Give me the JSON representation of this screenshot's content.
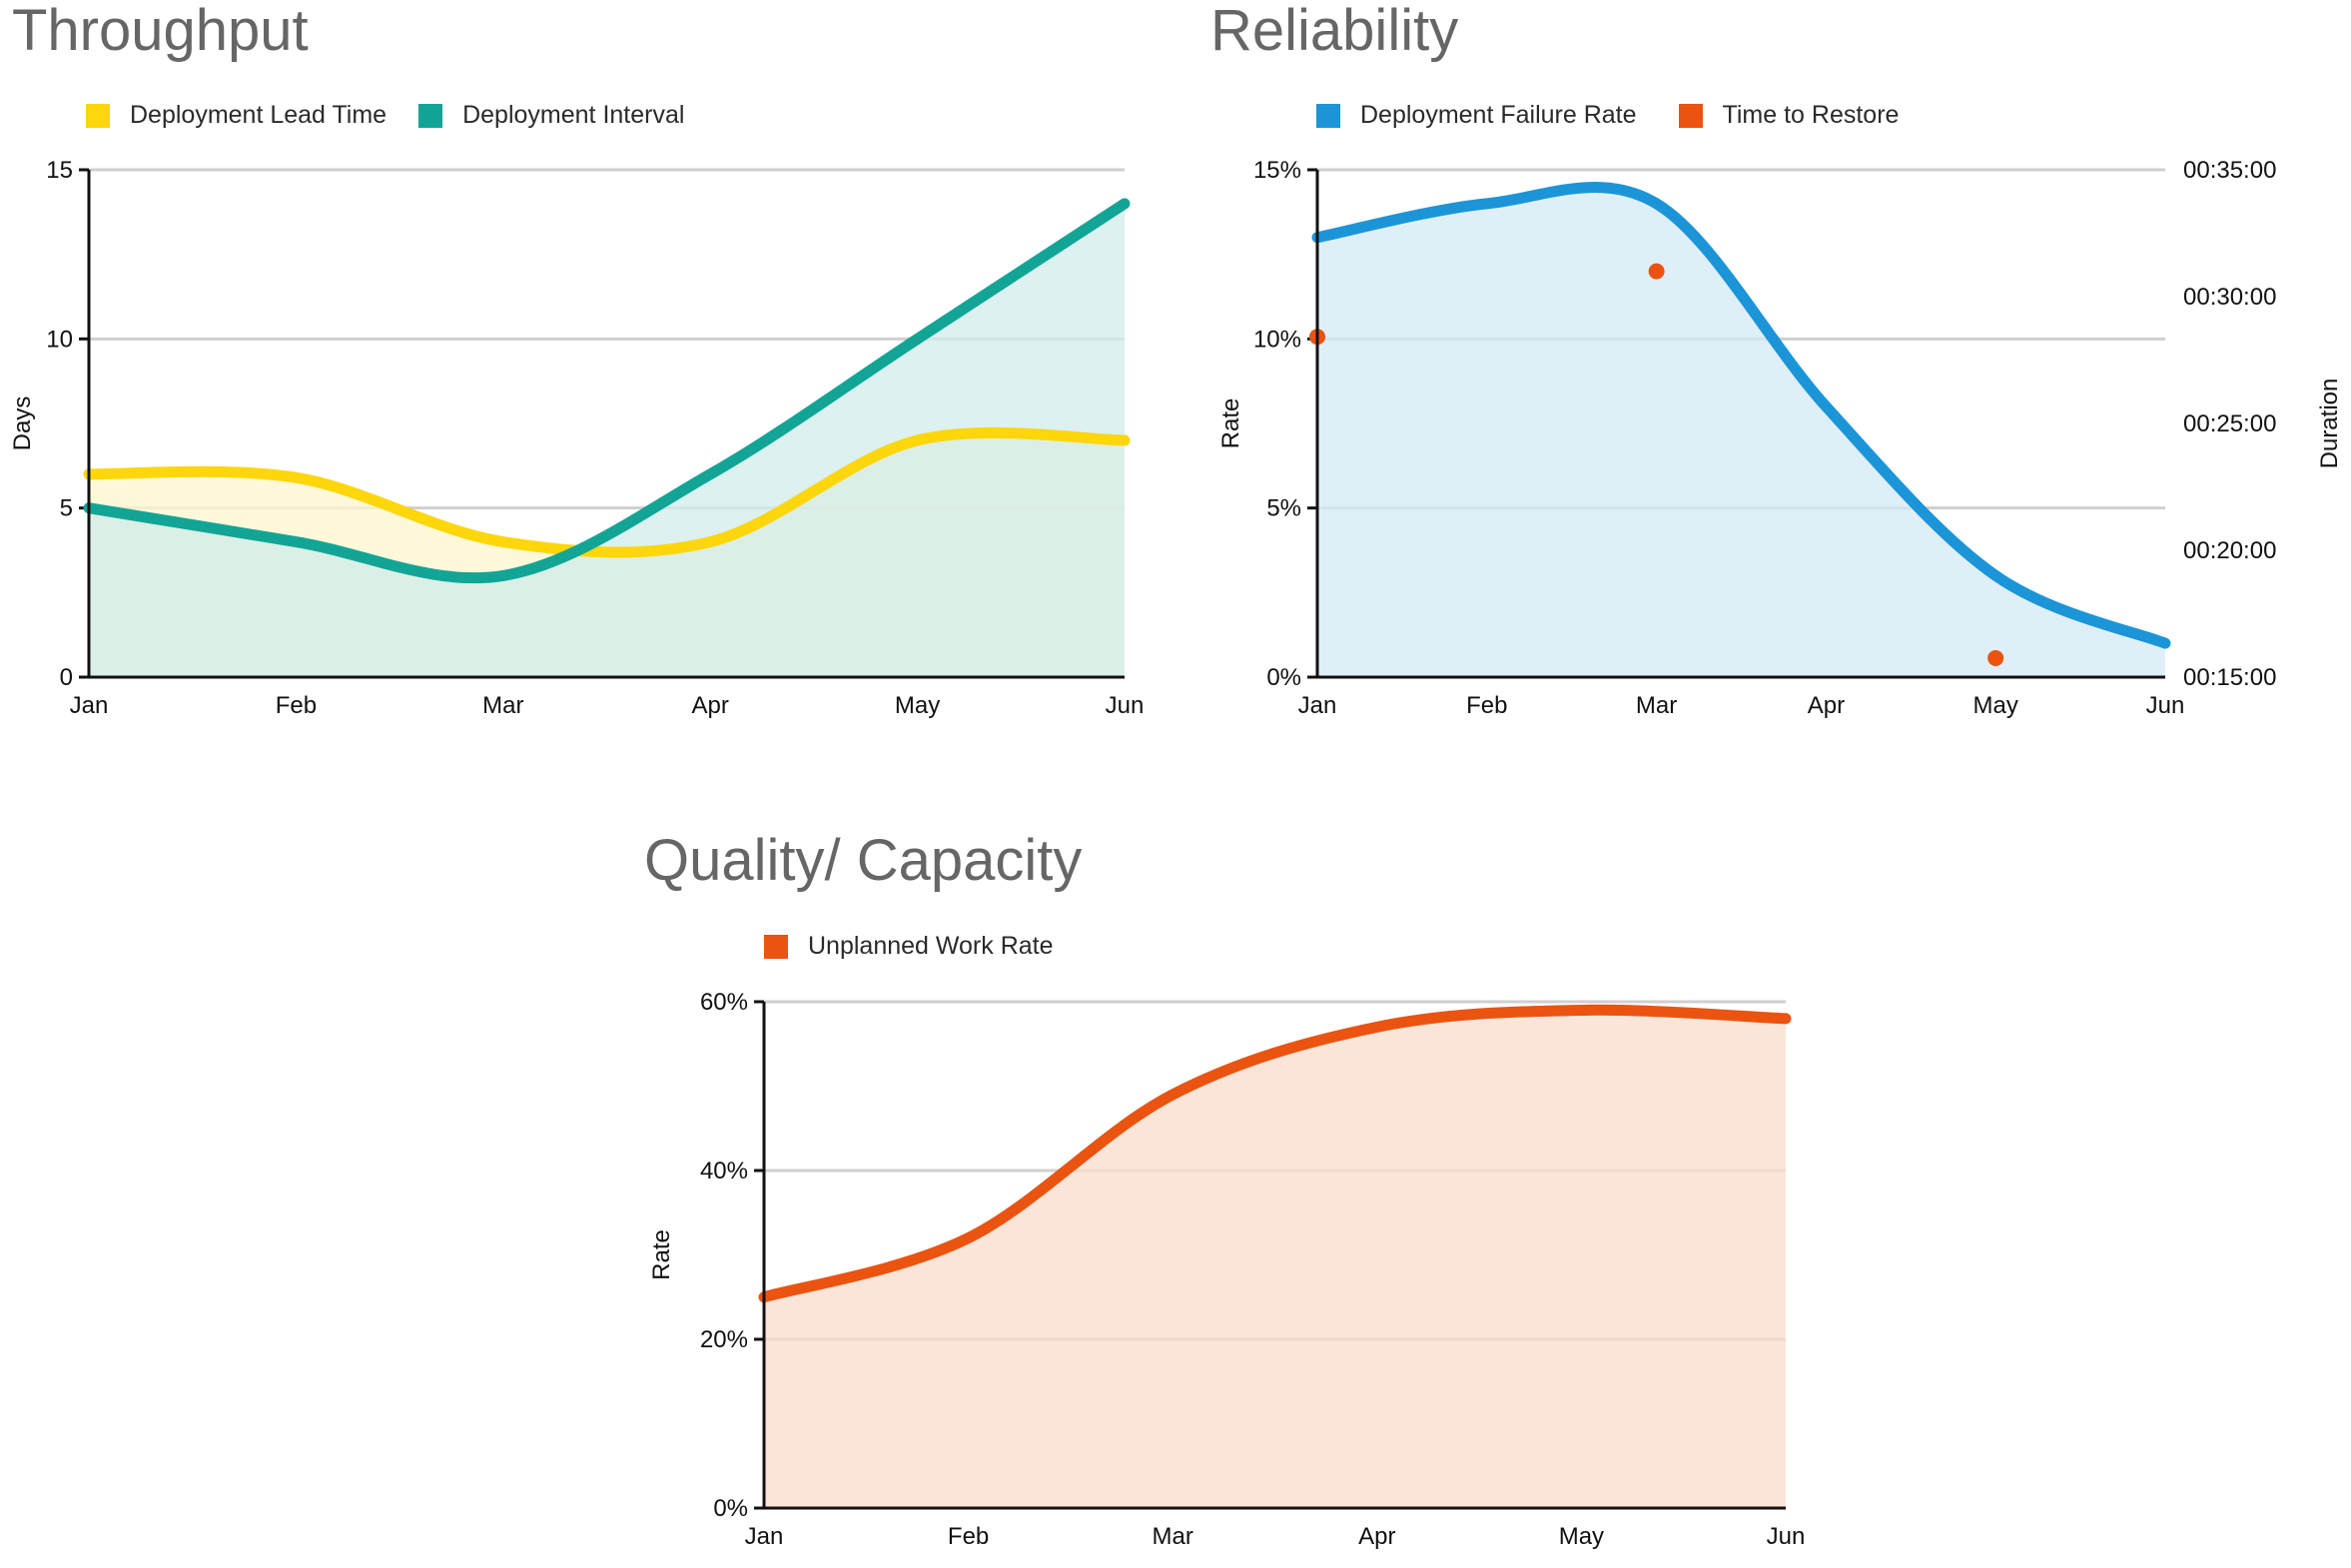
{
  "chart_data": [
    {
      "type": "area",
      "title": "Throughput",
      "ylabel": "Days",
      "x": [
        "Jan",
        "Feb",
        "Mar",
        "Apr",
        "May",
        "Jun"
      ],
      "ylim": [
        0,
        15
      ],
      "yticks": [
        "0",
        "5",
        "10",
        "15"
      ],
      "grid": true,
      "legend_position": "top-left",
      "series": [
        {
          "name": "Deployment Lead Time",
          "color": "#FDD60C",
          "fill": "#FFF6CC",
          "values": [
            6,
            5.9,
            4,
            4,
            7,
            7
          ]
        },
        {
          "name": "Deployment Interval",
          "color": "#12A596",
          "fill": "#D0ECEB",
          "values": [
            5,
            4,
            3,
            6,
            10,
            14
          ]
        }
      ]
    },
    {
      "type": "area",
      "title": "Reliability",
      "ylabel": "Rate",
      "y2label": "Duration",
      "x": [
        "Jan",
        "Feb",
        "Mar",
        "Apr",
        "May",
        "Jun"
      ],
      "ylim": [
        0,
        15
      ],
      "yticks": [
        "0%",
        "5%",
        "10%",
        "15%"
      ],
      "y2ticks": [
        "00:15:00",
        "00:20:00",
        "00:25:00",
        "00:30:00",
        "00:35:00"
      ],
      "grid": true,
      "legend_position": "top-left",
      "series": [
        {
          "name": "Deployment Failure Rate",
          "color": "#1B95D7",
          "fill": "#D3EAF6",
          "type": "area",
          "values": [
            13,
            14,
            14,
            8,
            3,
            1
          ]
        },
        {
          "name": "Time to Restore",
          "color": "#EB5310",
          "type": "scatter",
          "points": [
            {
              "x": "Jan",
              "y": "00:28:25"
            },
            {
              "x": "Mar",
              "y": "00:31:00"
            },
            {
              "x": "May",
              "y": "00:15:45"
            }
          ]
        }
      ]
    },
    {
      "type": "area",
      "title": "Quality/ Capacity",
      "ylabel": "Rate",
      "x": [
        "Jan",
        "Feb",
        "Mar",
        "Apr",
        "May",
        "Jun"
      ],
      "ylim": [
        0,
        60
      ],
      "yticks": [
        "0%",
        "20%",
        "40%",
        "60%"
      ],
      "grid": true,
      "legend_position": "top-left",
      "series": [
        {
          "name": "Unplanned Work Rate",
          "color": "#EB5310",
          "fill": "#F9DCCC",
          "values": [
            25,
            32,
            49,
            57,
            59,
            58
          ]
        }
      ]
    }
  ]
}
